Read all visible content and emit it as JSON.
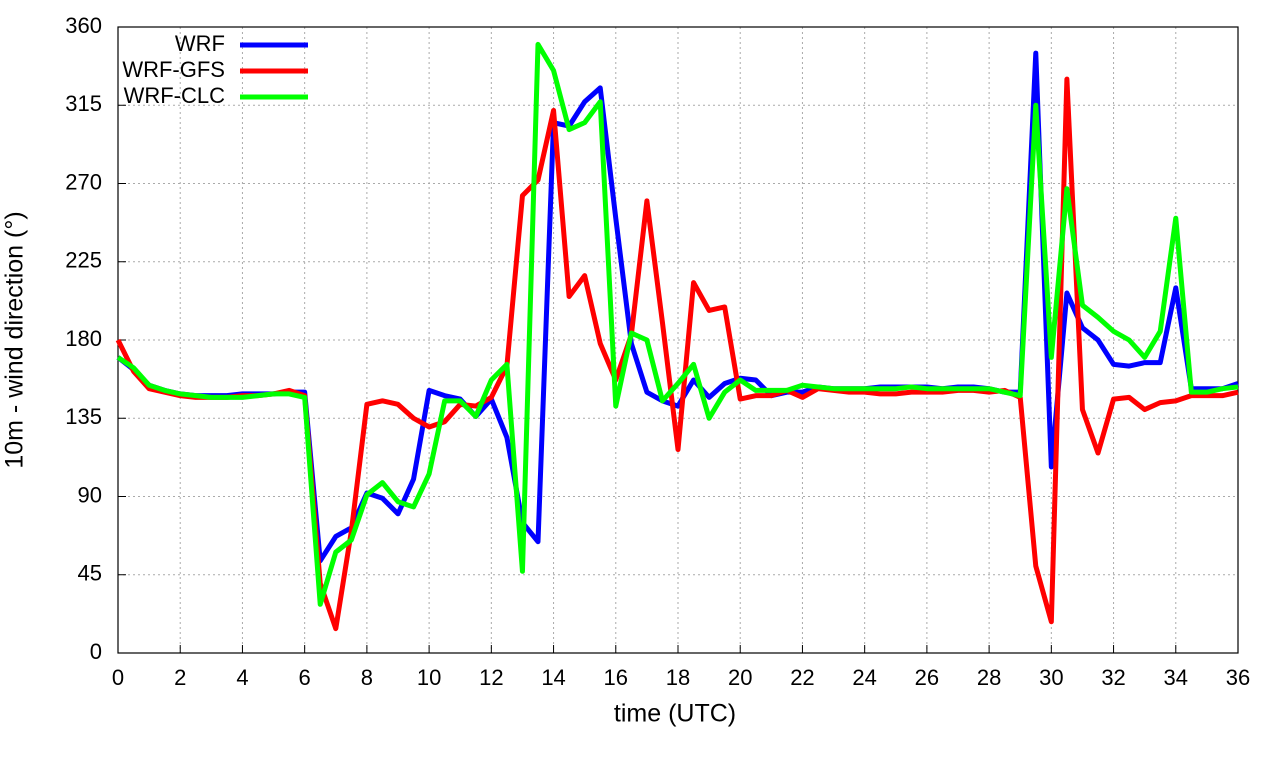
{
  "chart_data": {
    "type": "line",
    "xlabel": "time (UTC)",
    "ylabel": "10m - wind direction (°)",
    "x": [
      0,
      0.5,
      1,
      1.5,
      2,
      2.5,
      3,
      3.5,
      4,
      4.5,
      5,
      5.5,
      6,
      6.5,
      7,
      7.5,
      8,
      8.5,
      9,
      9.5,
      10,
      10.5,
      11,
      11.5,
      12,
      12.5,
      13,
      13.5,
      14,
      14.5,
      15,
      15.5,
      16,
      16.5,
      17,
      17.5,
      18,
      18.5,
      19,
      19.5,
      20,
      20.5,
      21,
      21.5,
      22,
      22.5,
      23,
      23.5,
      24,
      24.5,
      25,
      25.5,
      26,
      26.5,
      27,
      27.5,
      28,
      28.5,
      29,
      29.5,
      30,
      30.5,
      31,
      31.5,
      32,
      32.5,
      33,
      33.5,
      34,
      34.5,
      35,
      35.5,
      36
    ],
    "series": [
      {
        "name": "WRF",
        "color": "#0000ff",
        "values": [
          170,
          163,
          154,
          151,
          149,
          148,
          148,
          148,
          149,
          149,
          149,
          150,
          150,
          53,
          67,
          72,
          92,
          89,
          80,
          100,
          151,
          148,
          146,
          136,
          146,
          124,
          75,
          64,
          305,
          303,
          317,
          325,
          250,
          178,
          150,
          145,
          142,
          157,
          147,
          155,
          158,
          157,
          148,
          150,
          150,
          153,
          152,
          152,
          152,
          153,
          153,
          153,
          153,
          152,
          153,
          153,
          152,
          150,
          150,
          345,
          107,
          207,
          187,
          180,
          166,
          165,
          167,
          167,
          210,
          152,
          152,
          152,
          155
        ]
      },
      {
        "name": "WRF-GFS",
        "color": "#ff0000",
        "values": [
          180,
          162,
          152,
          150,
          148,
          147,
          147,
          147,
          148,
          148,
          149,
          151,
          148,
          40,
          14,
          70,
          143,
          145,
          143,
          135,
          130,
          133,
          143,
          142,
          147,
          165,
          263,
          272,
          312,
          205,
          217,
          178,
          157,
          183,
          260,
          190,
          117,
          213,
          197,
          199,
          146,
          148,
          148,
          151,
          147,
          152,
          151,
          150,
          150,
          149,
          149,
          150,
          150,
          150,
          151,
          151,
          150,
          151,
          147,
          50,
          18,
          330,
          140,
          115,
          146,
          147,
          140,
          144,
          145,
          148,
          148,
          148,
          150
        ]
      },
      {
        "name": "WRF-CLC",
        "color": "#00ff00",
        "values": [
          170,
          164,
          154,
          151,
          149,
          148,
          147,
          147,
          147,
          148,
          149,
          149,
          147,
          28,
          58,
          65,
          91,
          98,
          87,
          84,
          103,
          145,
          145,
          136,
          157,
          166,
          47,
          350,
          335,
          301,
          305,
          317,
          142,
          184,
          180,
          145,
          155,
          166,
          135,
          150,
          157,
          151,
          151,
          151,
          154,
          153,
          152,
          152,
          152,
          152,
          152,
          153,
          152,
          152,
          152,
          152,
          152,
          150,
          148,
          315,
          170,
          267,
          200,
          193,
          185,
          180,
          170,
          185,
          250,
          150,
          150,
          152,
          153
        ]
      }
    ],
    "xlim": [
      0,
      36
    ],
    "xticks": [
      0,
      2,
      4,
      6,
      8,
      10,
      12,
      14,
      16,
      18,
      20,
      22,
      24,
      26,
      28,
      30,
      32,
      34,
      36
    ],
    "ylim": [
      0,
      360
    ],
    "yticks": [
      0,
      45,
      90,
      135,
      180,
      225,
      270,
      315,
      360
    ],
    "grid": true,
    "legend": "upper-left"
  }
}
